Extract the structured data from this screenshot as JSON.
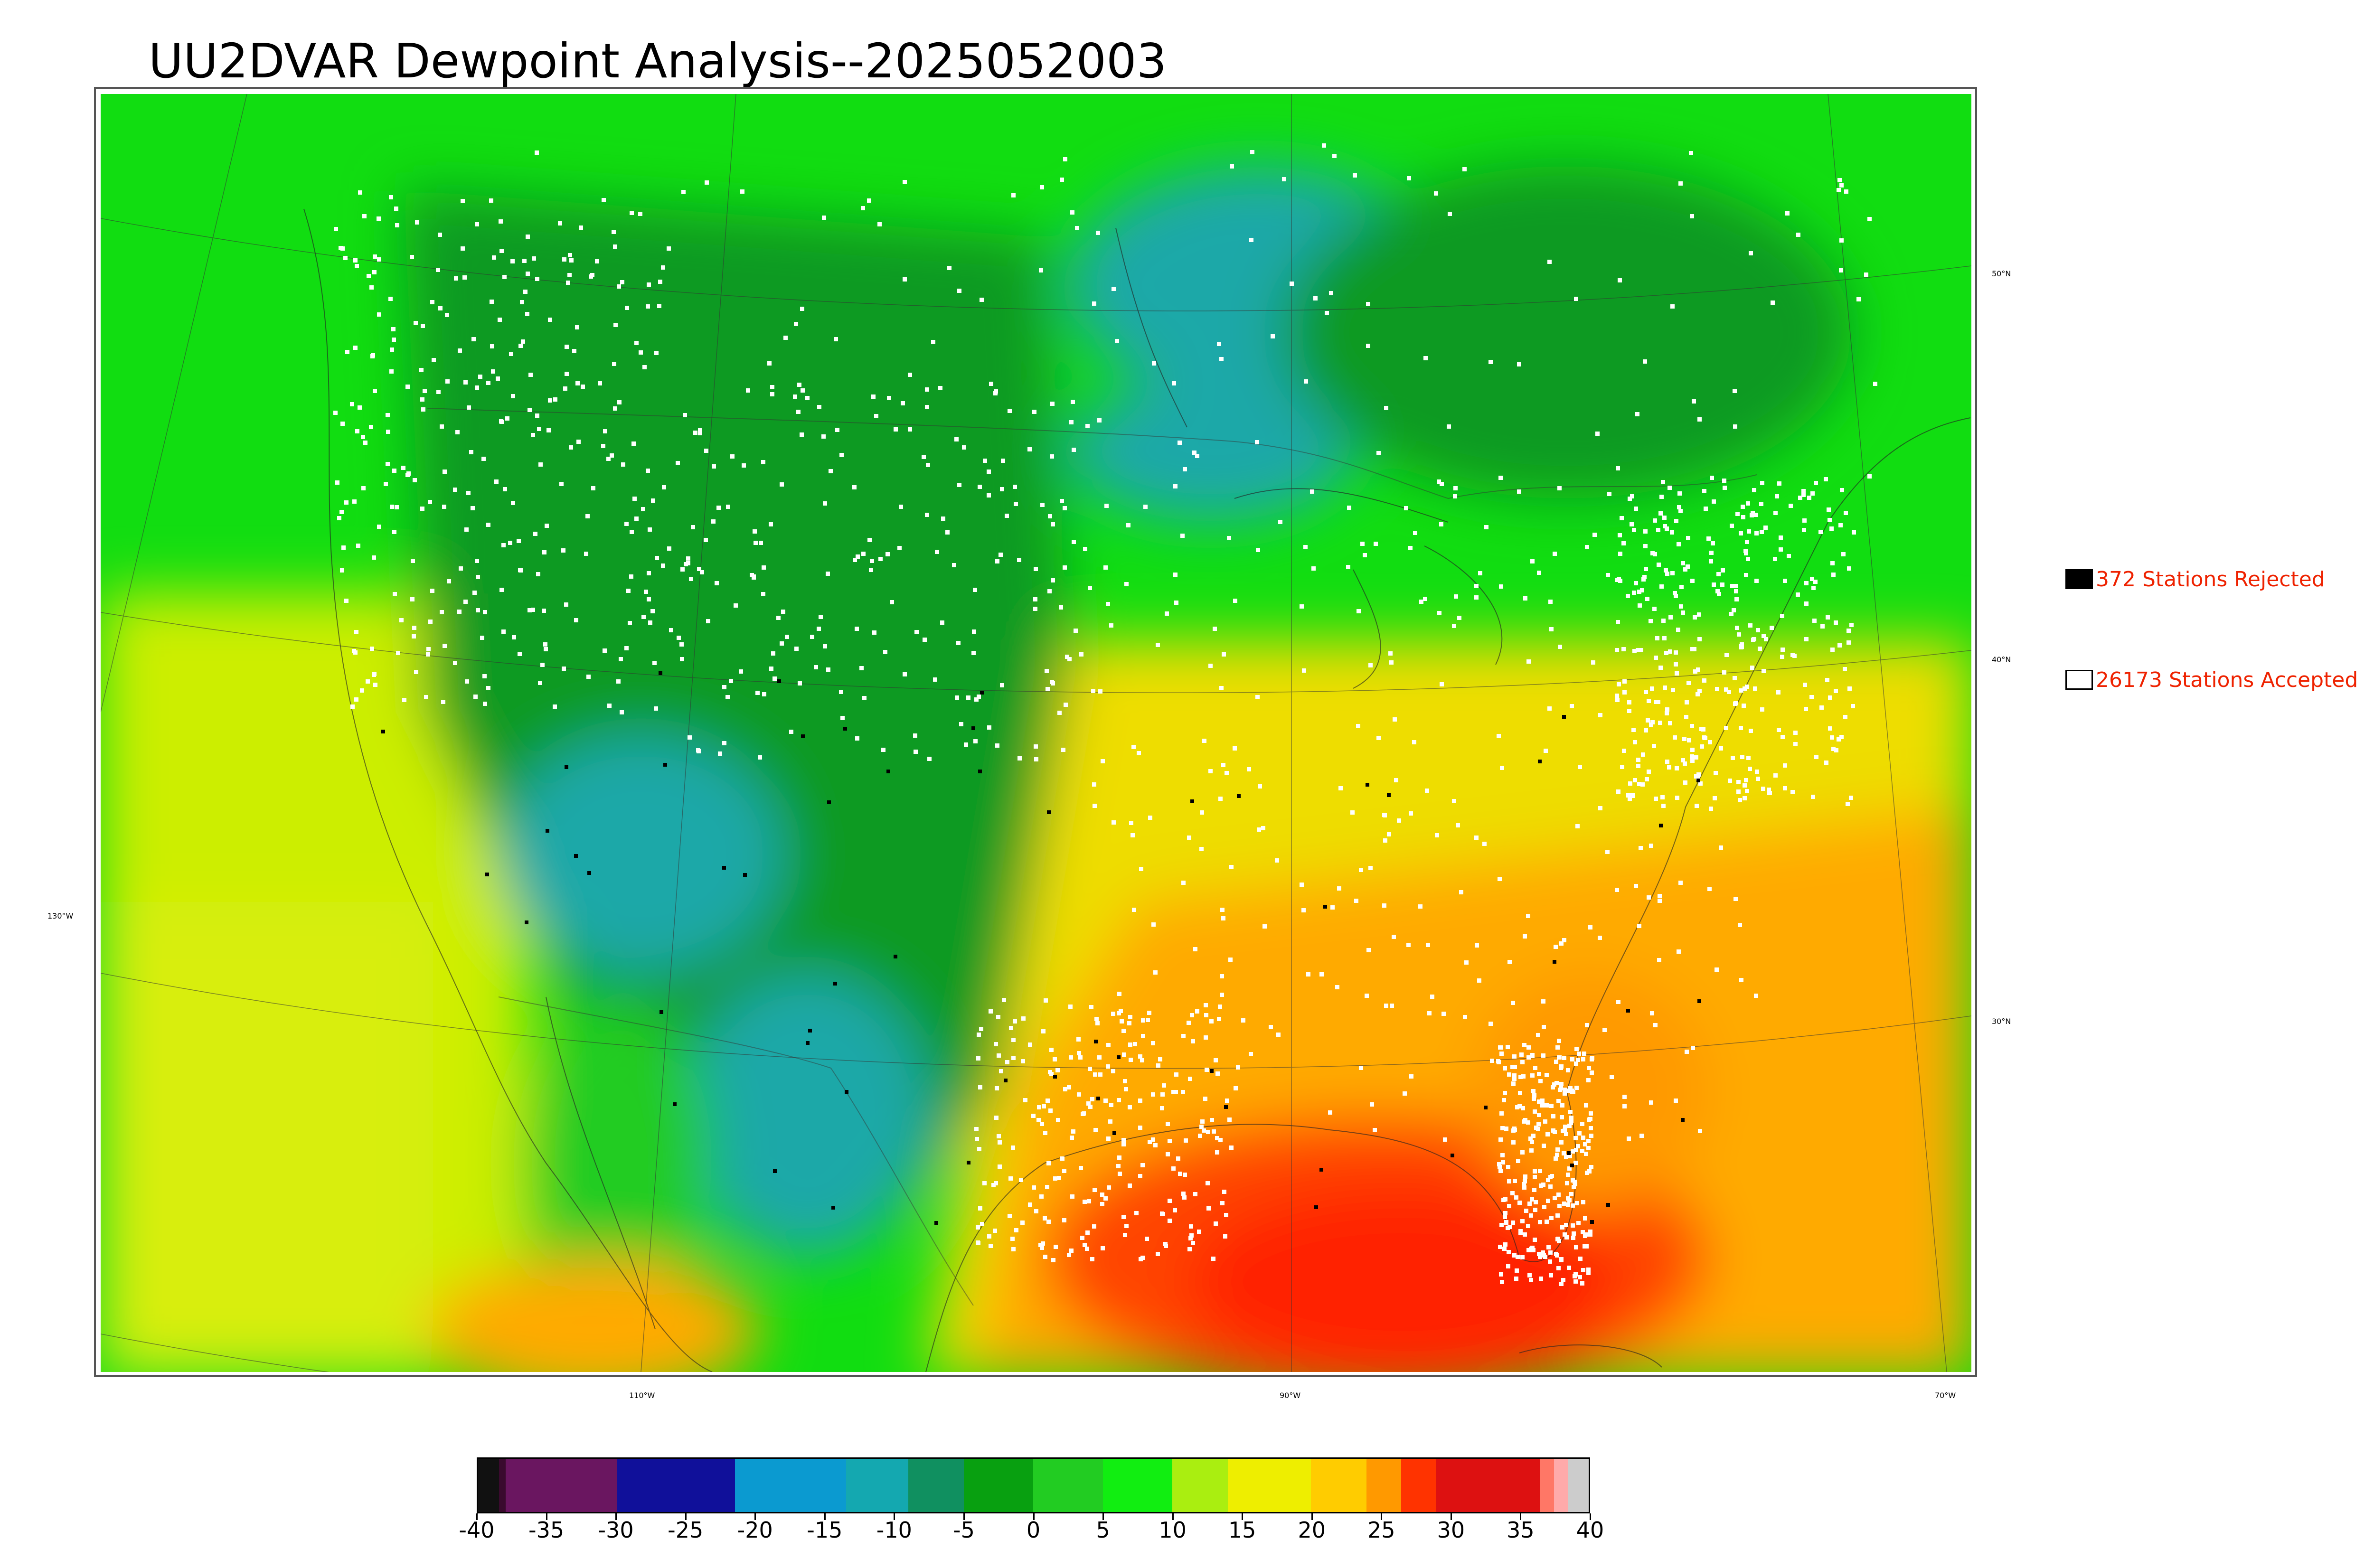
{
  "title": "UU2DVAR Dewpoint Analysis--2025052003",
  "legend": {
    "rejected": {
      "label": "372 Stations Rejected",
      "color": "#000000"
    },
    "accepted": {
      "label": "26173 Stations Accepted",
      "color": "#ffffff"
    }
  },
  "graticule": {
    "lat_labels": [
      "50°N",
      "40°N",
      "30°N"
    ],
    "lon_labels": [
      "130°W",
      "110°W",
      "90°W",
      "70°W"
    ]
  },
  "colorbar": {
    "ticks": [
      "-40",
      "-35",
      "-30",
      "-25",
      "-20",
      "-15",
      "-10",
      "-5",
      "0",
      "5",
      "10",
      "15",
      "20",
      "25",
      "30",
      "35",
      "40"
    ],
    "range": [
      -40,
      40
    ],
    "segments": [
      {
        "from": -40,
        "to": -38.5,
        "color": "#111111"
      },
      {
        "from": -38.5,
        "to": -38,
        "color": "#3a0a2e"
      },
      {
        "from": -38,
        "to": -30,
        "color": "#6a1660"
      },
      {
        "from": -30,
        "to": -21.5,
        "color": "#10109a"
      },
      {
        "from": -21.5,
        "to": -13.5,
        "color": "#0b9ad0"
      },
      {
        "from": -13.5,
        "to": -9,
        "color": "#14a8b0"
      },
      {
        "from": -9,
        "to": -5,
        "color": "#109060"
      },
      {
        "from": -5,
        "to": 0,
        "color": "#08a010"
      },
      {
        "from": 0,
        "to": 5,
        "color": "#22cc22"
      },
      {
        "from": 5,
        "to": 10,
        "color": "#11ee11"
      },
      {
        "from": 10,
        "to": 14,
        "color": "#aaee10"
      },
      {
        "from": 14,
        "to": 20,
        "color": "#eeee00"
      },
      {
        "from": 20,
        "to": 24,
        "color": "#ffcc00"
      },
      {
        "from": 24,
        "to": 26.5,
        "color": "#ff9900"
      },
      {
        "from": 26.5,
        "to": 29,
        "color": "#ff3300"
      },
      {
        "from": 29,
        "to": 36.5,
        "color": "#dd1111"
      },
      {
        "from": 36.5,
        "to": 37.5,
        "color": "#ff7766"
      },
      {
        "from": 37.5,
        "to": 38.5,
        "color": "#ffaaaa"
      },
      {
        "from": 38.5,
        "to": 40,
        "color": "#cccccc"
      }
    ]
  },
  "colors": {
    "cold_west": "#1aa8a8",
    "green_dry": "#0a9a20",
    "green": "#22dd22",
    "yellow_green": "#ccee00",
    "yellow": "#eedd00",
    "orange": "#ffaa00",
    "gulf_red": "#ff4400",
    "station_accepted": "#ffffff",
    "station_rejected": "#000000"
  }
}
